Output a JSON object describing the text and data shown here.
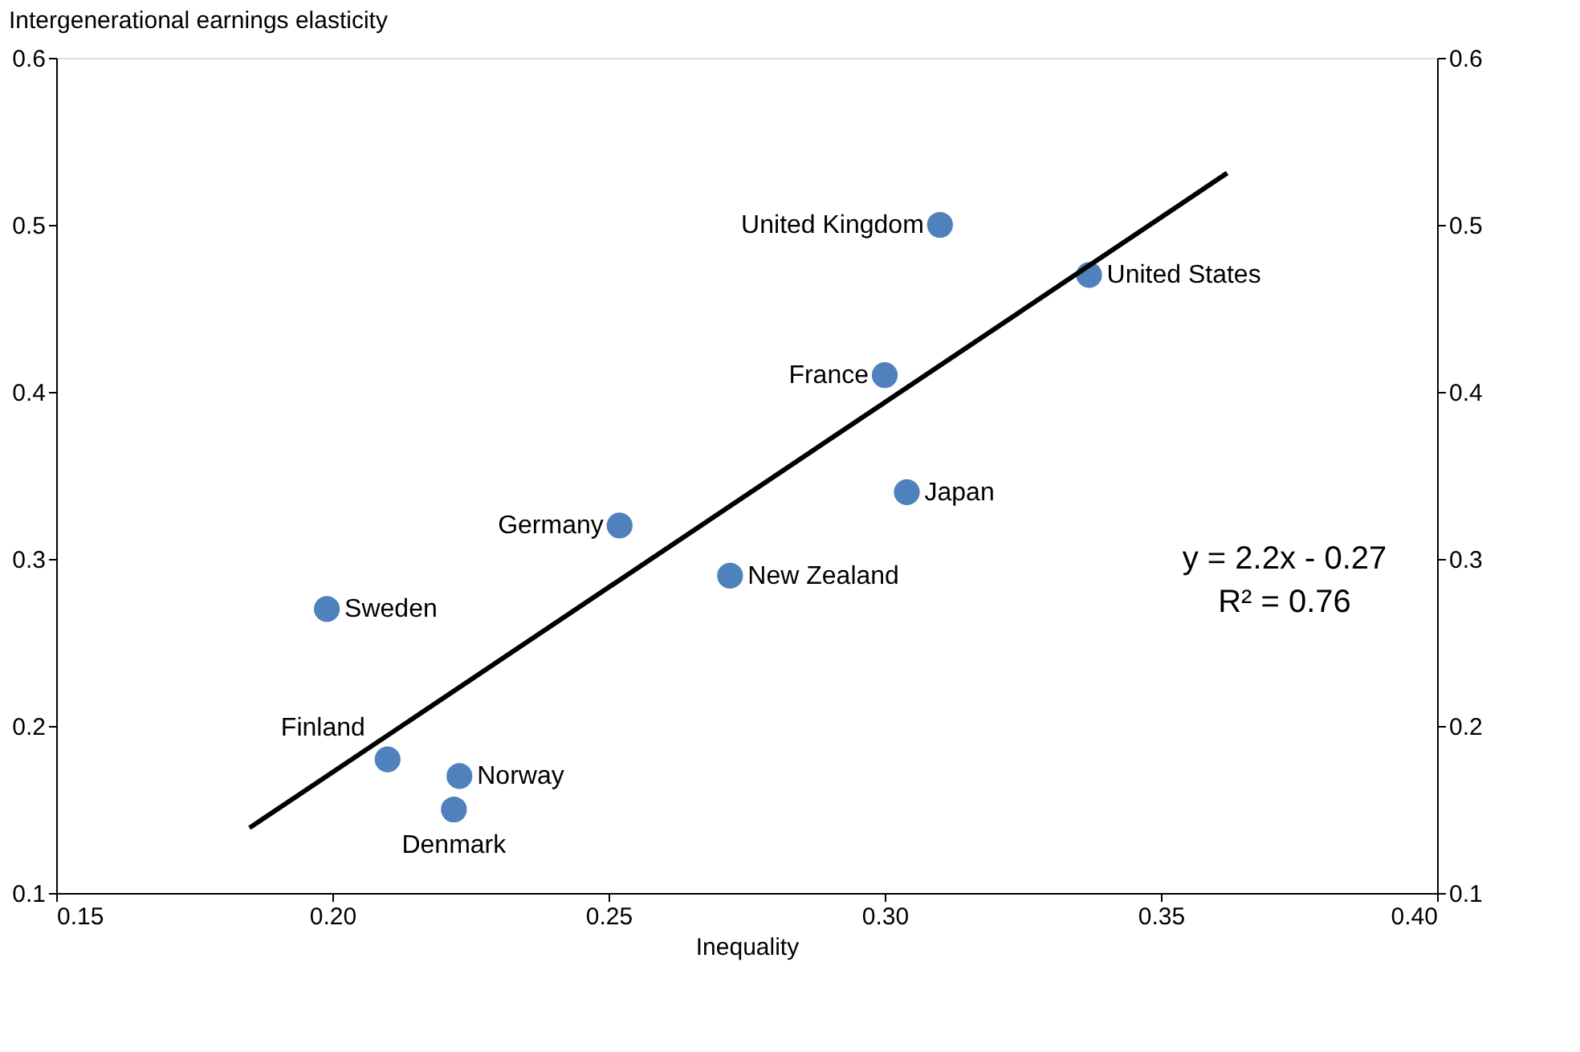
{
  "chart_data": {
    "type": "scatter",
    "xlabel": "Inequality",
    "ylabel": "Intergenerational earnings elasticity",
    "xlim": [
      0.15,
      0.4
    ],
    "xticks": [
      0.15,
      {
        "value": 0.2,
        "label": "0.20"
      },
      0.25,
      {
        "value": 0.3,
        "label": "0.30"
      },
      0.35,
      {
        "value": 0.4,
        "label": "0.40"
      }
    ],
    "ylim": [
      0.1,
      0.6
    ],
    "yticks": [
      0.1,
      0.2,
      0.3,
      0.4,
      0.5,
      0.6
    ],
    "y2lim": [
      0.1,
      0.6
    ],
    "y2ticks": [
      0.1,
      0.2,
      0.3,
      0.4,
      0.5,
      0.6
    ],
    "grid": false,
    "marker": "circle",
    "series": [
      {
        "color": "#4f81bd",
        "x": [
          0.31,
          0.337,
          0.3,
          0.304,
          0.252,
          0.272,
          0.199,
          0.21,
          0.223,
          0.222
        ],
        "values": [
          0.5,
          0.47,
          0.41,
          0.34,
          0.32,
          0.29,
          0.27,
          0.18,
          0.17,
          0.15
        ]
      },
      {
        "type": "line",
        "color": "#000000",
        "line_style": "solid",
        "marker": "none",
        "x": [
          0.185,
          0.362
        ],
        "values": [
          0.139,
          0.531
        ]
      }
    ],
    "annotations": [
      {
        "text": "United Kingdom",
        "x": 0.31,
        "y": 0.5
      },
      {
        "text": "United States",
        "x": 0.337,
        "y": 0.47
      },
      {
        "text": "France",
        "x": 0.3,
        "y": 0.41
      },
      {
        "text": "Japan",
        "x": 0.304,
        "y": 0.34
      },
      {
        "text": "Germany",
        "x": 0.252,
        "y": 0.32
      },
      {
        "text": "New Zealand",
        "x": 0.272,
        "y": 0.29
      },
      {
        "text": "Sweden",
        "x": 0.199,
        "y": 0.27
      },
      {
        "text": "Finland",
        "x": 0.21,
        "y": 0.18
      },
      {
        "text": "Norway",
        "x": 0.223,
        "y": 0.17
      },
      {
        "text": "Denmark",
        "x": 0.222,
        "y": 0.15
      },
      "y = 2.2x - 0.27",
      "R² = 0.76"
    ]
  }
}
